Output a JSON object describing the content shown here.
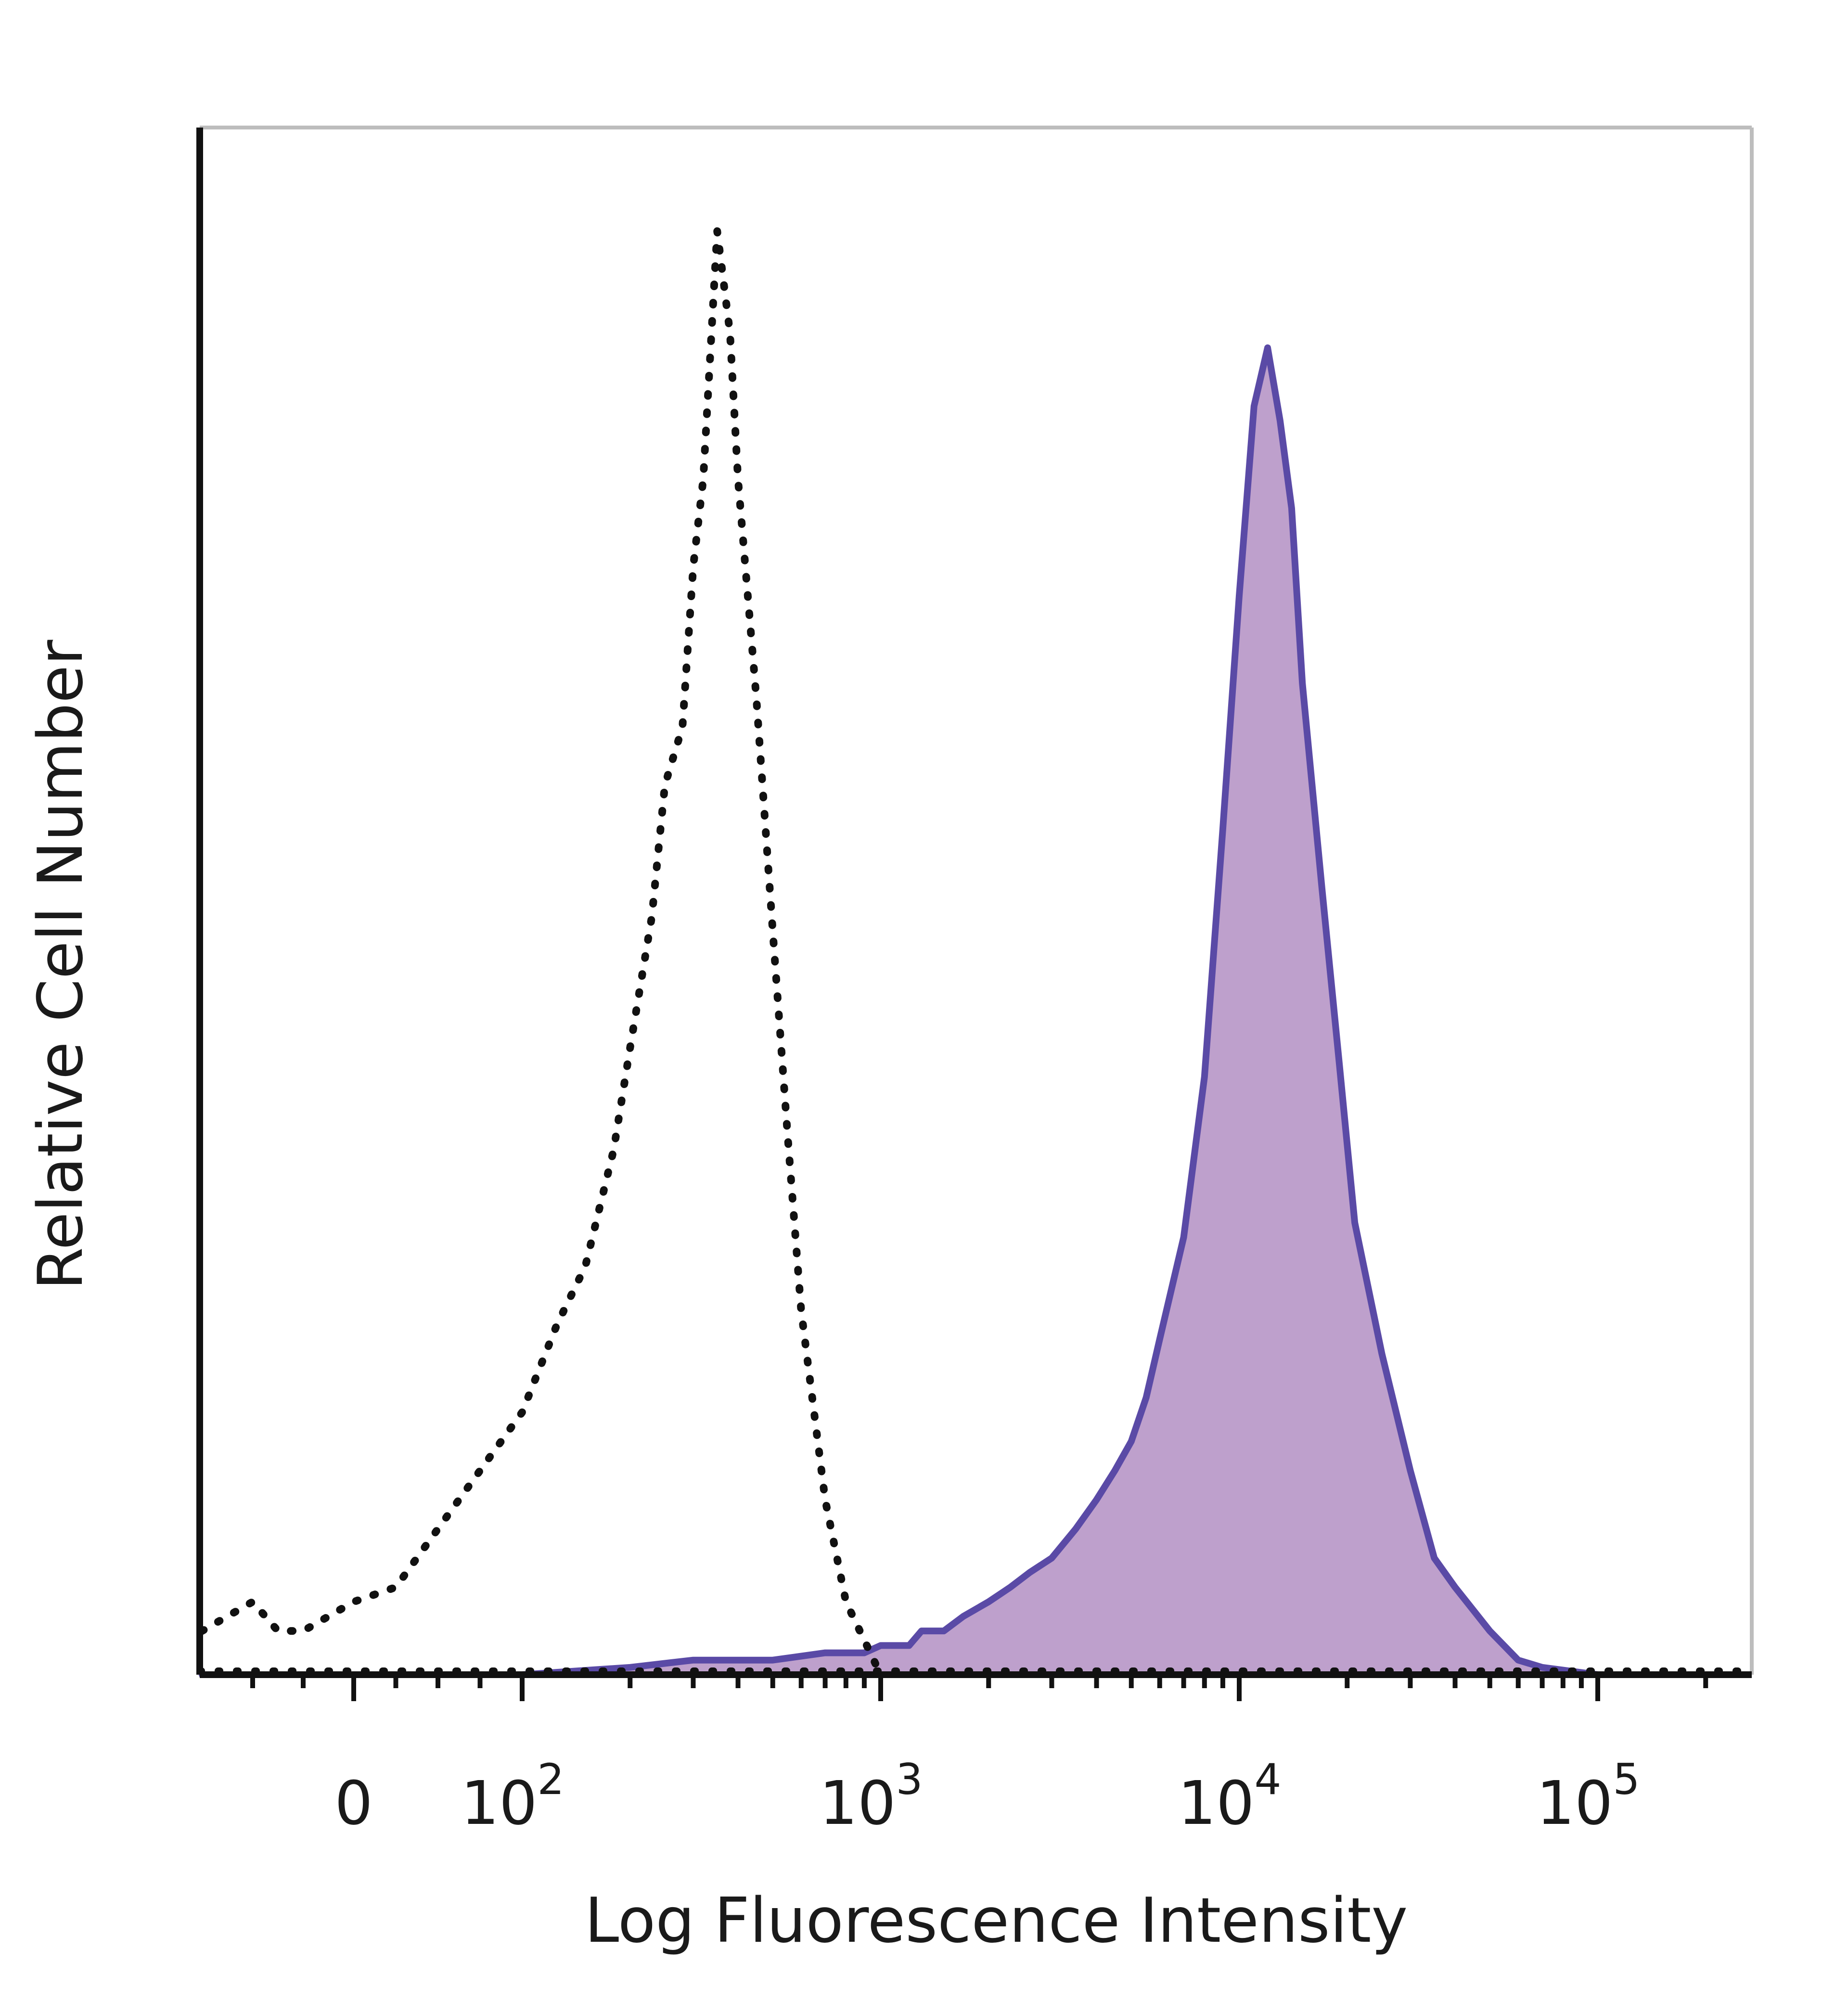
{
  "chart_data": {
    "type": "area",
    "xlabel": "Log Fluorescence Intensity",
    "ylabel": "Relative Cell Number",
    "x_scale": "biexponential",
    "x_ticks": [
      {
        "value": 0,
        "base": "0",
        "exp": ""
      },
      {
        "value": 100,
        "base": "10",
        "exp": "2"
      },
      {
        "value": 1000,
        "base": "10",
        "exp": "3"
      },
      {
        "value": 10000,
        "base": "10",
        "exp": "4"
      },
      {
        "value": 100000,
        "base": "10",
        "exp": "5"
      }
    ],
    "xlim": [
      -300,
      250000
    ],
    "ylim": [
      0,
      100
    ],
    "grid": false,
    "colors": {
      "stained_line": "#5a4aa6",
      "stained_fill": "#bea0cc",
      "control_line": "#111111",
      "axis": "#111111",
      "frame": "#bdbdbd"
    },
    "series": [
      {
        "style": "dotted-outline",
        "x": [
          -300,
          -250,
          -200,
          -150,
          -100,
          -50,
          0,
          25,
          50,
          75,
          100,
          125,
          150,
          180,
          200,
          230,
          250,
          280,
          300,
          320,
          350,
          380,
          400,
          450,
          500,
          550,
          600,
          700,
          800,
          1000
        ],
        "y": [
          3,
          4,
          5,
          3,
          3,
          4,
          5,
          6,
          10,
          14,
          18,
          24,
          28,
          36,
          43,
          52,
          61,
          65,
          76,
          82,
          99,
          92,
          82,
          67,
          51,
          37,
          25,
          12,
          5,
          0
        ]
      },
      {
        "style": "filled",
        "x": [
          -300,
          0,
          100,
          200,
          300,
          400,
          500,
          700,
          900,
          1000,
          1200,
          1300,
          1500,
          1700,
          2000,
          2300,
          2600,
          3000,
          3500,
          4000,
          4500,
          5000,
          5500,
          6000,
          7000,
          8000,
          9000,
          10000,
          11000,
          12000,
          13000,
          14000,
          15000,
          17000,
          19000,
          21000,
          25000,
          30000,
          35000,
          40000,
          50000,
          60000,
          70000,
          100000,
          150000,
          250000
        ],
        "y": [
          0,
          0,
          0,
          0.5,
          1,
          1,
          1,
          1.5,
          1.5,
          2,
          2,
          3,
          3,
          4,
          5,
          6,
          7,
          8,
          10,
          12,
          14,
          16,
          19,
          23,
          30,
          41,
          58,
          74,
          87,
          91,
          86,
          80,
          68,
          54,
          42,
          31,
          22,
          14,
          8,
          6,
          3,
          1,
          0.5,
          0,
          0,
          0
        ]
      }
    ]
  }
}
